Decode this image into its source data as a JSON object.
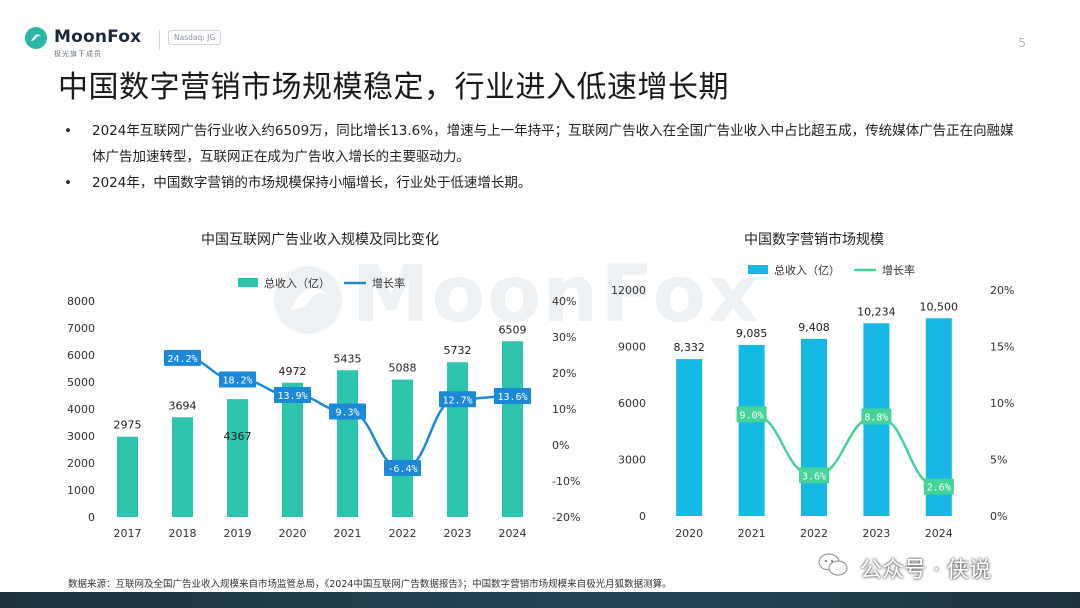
{
  "header": {
    "brand": "MoonFox",
    "brand_sub": "极光旗下成员",
    "ticker": "Nasdaq: JG",
    "page_number": "5"
  },
  "title": "中国数字营销市场规模稳定，行业进入低速增长期",
  "bullets": [
    "2024年互联网广告行业收入约6509万，同比增长13.6%，增速与上一年持平；互联网广告收入在全国广告业收入中占比超五成，传统媒体广告正在向融媒体广告加速转型，互联网正在成为广告收入增长的主要驱动力。",
    "2024年，中国数字营销的市场规模保持小幅增长，行业处于低速增长期。"
  ],
  "bullet_marker": "•",
  "watermark": "MoonFox",
  "footnote": "数据来源：互联网及全国广告业收入规模来自市场监管总局，《2024中国互联网广告数据报告》；中国数字营销市场规模来自极光月狐数据测算。",
  "wechat": {
    "text": "公众号 · 侠说"
  },
  "colors": {
    "bar_left": "#2fc4ae",
    "line_left": "#1e88d8",
    "bar_right": "#16b8e4",
    "line_right": "#45d398",
    "accent_dark": "#1d3340"
  },
  "chart_data": [
    {
      "type": "bar",
      "title": "中国互联网广告业收入规模及同比变化",
      "categories": [
        "2017",
        "2018",
        "2019",
        "2020",
        "2021",
        "2022",
        "2023",
        "2024"
      ],
      "series": [
        {
          "name": "总收入（亿）",
          "type": "bar",
          "axis": "left",
          "values": [
            2975,
            3694,
            4367,
            4972,
            5435,
            5088,
            5732,
            6509
          ],
          "labels": [
            "2975",
            "3694",
            "4367",
            "4972",
            "5435",
            "5088",
            "5732",
            "6509"
          ]
        },
        {
          "name": "增长率",
          "type": "line",
          "axis": "right",
          "values": [
            null,
            24.2,
            18.2,
            13.9,
            9.3,
            -6.4,
            12.7,
            13.6
          ],
          "labels": [
            "",
            "24.2%",
            "18.2%",
            "13.9%",
            "9.3%",
            "-6.4%",
            "12.7%",
            "13.6%"
          ]
        }
      ],
      "ylim_left": [
        0,
        8000
      ],
      "yticks_left": [
        "0",
        "1000",
        "2000",
        "3000",
        "4000",
        "5000",
        "6000",
        "7000",
        "8000"
      ],
      "ylim_right": [
        -20,
        40
      ],
      "yticks_right": [
        "-20%",
        "-10%",
        "0%",
        "10%",
        "20%",
        "30%",
        "40%"
      ],
      "legend": "top",
      "grid": false
    },
    {
      "type": "bar",
      "title": "中国数字营销市场规模",
      "categories": [
        "2020",
        "2021",
        "2022",
        "2023",
        "2024"
      ],
      "series": [
        {
          "name": "总收入（亿）",
          "type": "bar",
          "axis": "left",
          "values": [
            8332,
            9085,
            9408,
            10234,
            10500
          ],
          "labels": [
            "8,332",
            "9,085",
            "9,408",
            "10,234",
            "10,500"
          ]
        },
        {
          "name": "增长率",
          "type": "line",
          "axis": "right",
          "values": [
            null,
            9.0,
            3.6,
            8.8,
            2.6
          ],
          "labels": [
            "",
            "9.0%",
            "3.6%",
            "8.8%",
            "2.6%"
          ]
        }
      ],
      "ylim_left": [
        0,
        12000
      ],
      "yticks_left": [
        "0",
        "3000",
        "6000",
        "9000",
        "12000"
      ],
      "ylim_right": [
        0,
        20
      ],
      "yticks_right": [
        "0%",
        "5%",
        "10%",
        "15%",
        "20%"
      ],
      "legend": "top",
      "grid": false
    }
  ]
}
